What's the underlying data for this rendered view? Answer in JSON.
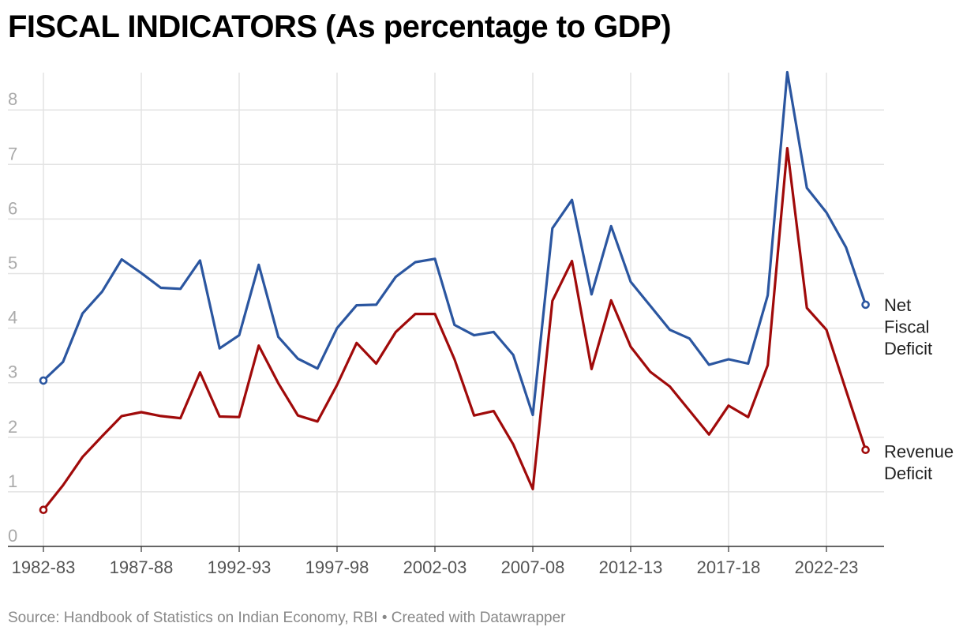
{
  "chart_data": {
    "type": "line",
    "title": "FISCAL INDICATORS (As percentage to GDP)",
    "xlabel": "",
    "ylabel": "",
    "ylim": [
      0,
      8.7
    ],
    "y_ticks": [
      0,
      1,
      2,
      3,
      4,
      5,
      6,
      7,
      8
    ],
    "x_tick_labels": [
      "1982-83",
      "1987-88",
      "1992-93",
      "1997-98",
      "2002-03",
      "2007-08",
      "2012-13",
      "2017-18",
      "2022-23"
    ],
    "x_tick_indices": [
      0,
      5,
      10,
      15,
      20,
      25,
      30,
      35,
      40
    ],
    "x": [
      "1982-83",
      "1983-84",
      "1984-85",
      "1985-86",
      "1986-87",
      "1987-88",
      "1988-89",
      "1989-90",
      "1990-91",
      "1991-92",
      "1992-93",
      "1993-94",
      "1994-95",
      "1995-96",
      "1996-97",
      "1997-98",
      "1998-99",
      "1999-00",
      "2000-01",
      "2001-02",
      "2002-03",
      "2003-04",
      "2004-05",
      "2005-06",
      "2006-07",
      "2007-08",
      "2008-09",
      "2009-10",
      "2010-11",
      "2011-12",
      "2012-13",
      "2013-14",
      "2014-15",
      "2015-16",
      "2016-17",
      "2017-18",
      "2018-19",
      "2019-20",
      "2020-21",
      "2021-22",
      "2022-23",
      "2023-24",
      "2024-25"
    ],
    "series": [
      {
        "name": "Net Fiscal Deficit",
        "legend_lines": [
          "Net",
          "Fiscal",
          "Deficit"
        ],
        "color": "#2b56a0",
        "values": [
          3.04,
          3.38,
          4.27,
          4.67,
          5.26,
          5.01,
          4.74,
          4.72,
          5.24,
          3.63,
          3.87,
          5.16,
          3.84,
          3.44,
          3.26,
          4.0,
          4.42,
          4.43,
          4.94,
          5.21,
          5.27,
          4.06,
          3.87,
          3.93,
          3.51,
          2.41,
          5.83,
          6.35,
          4.62,
          5.87,
          4.85,
          4.41,
          3.97,
          3.81,
          3.33,
          3.43,
          3.35,
          4.6,
          8.69,
          6.57,
          6.12,
          5.48,
          4.43
        ]
      },
      {
        "name": "Revenue Deficit",
        "legend_lines": [
          "Revenue",
          "Deficit"
        ],
        "color": "#a00a0a",
        "values": [
          0.67,
          1.12,
          1.64,
          2.02,
          2.39,
          2.46,
          2.39,
          2.35,
          3.19,
          2.38,
          2.37,
          3.68,
          2.99,
          2.4,
          2.29,
          2.96,
          3.73,
          3.35,
          3.93,
          4.26,
          4.26,
          3.43,
          2.4,
          2.48,
          1.87,
          1.05,
          4.5,
          5.23,
          3.25,
          4.51,
          3.66,
          3.2,
          2.93,
          2.49,
          2.05,
          2.58,
          2.37,
          3.32,
          7.3,
          4.37,
          3.97,
          2.86,
          1.77
        ]
      }
    ]
  },
  "source_line": "Source: Handbook of Statistics on Indian Economy, RBI • Created with Datawrapper"
}
